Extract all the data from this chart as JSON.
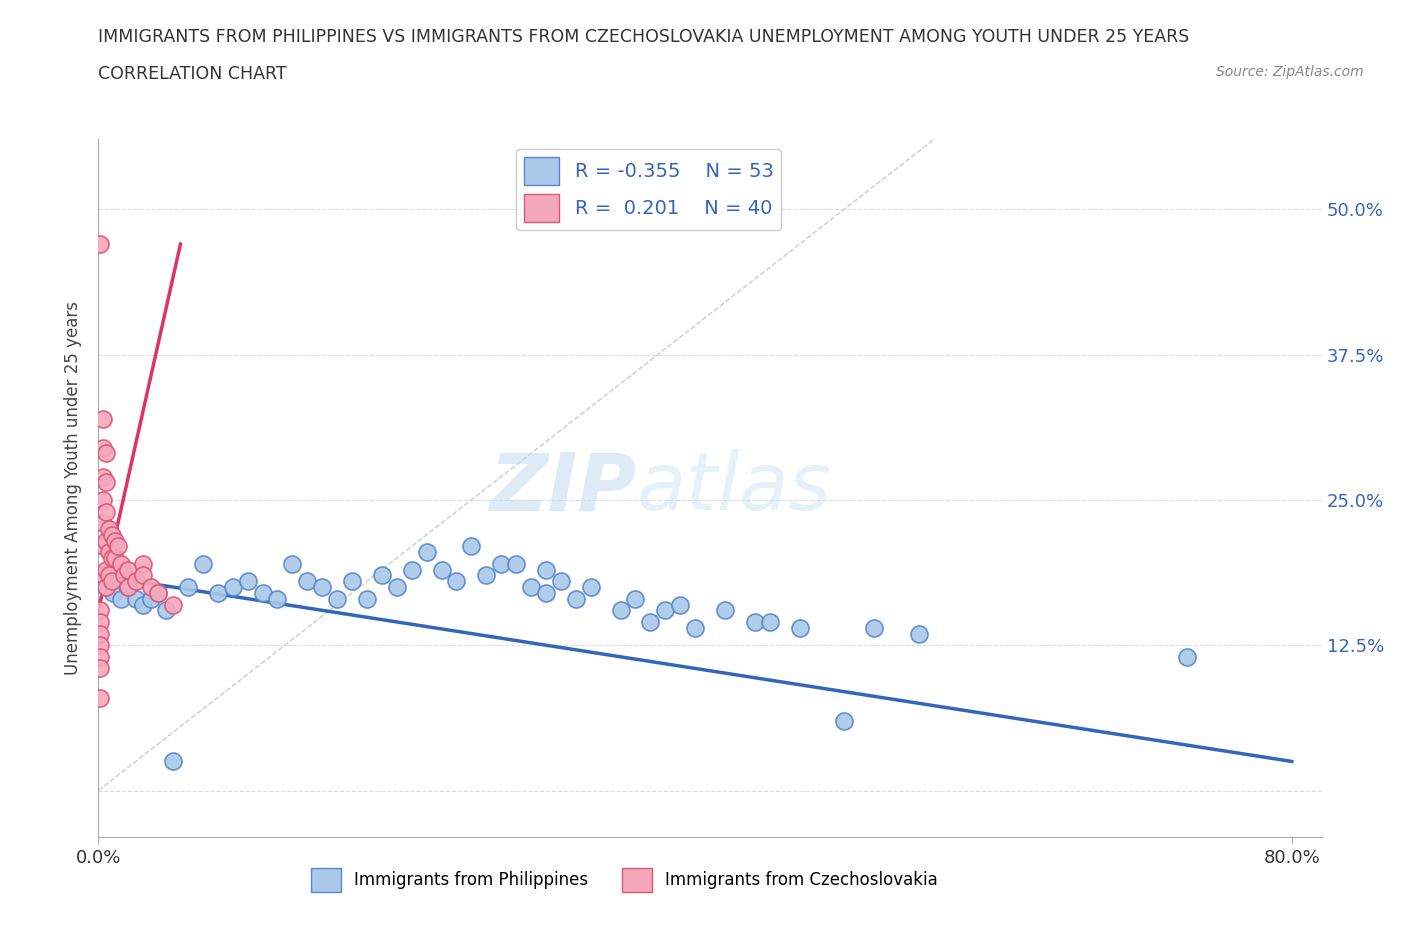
{
  "title_line1": "IMMIGRANTS FROM PHILIPPINES VS IMMIGRANTS FROM CZECHOSLOVAKIA UNEMPLOYMENT AMONG YOUTH UNDER 25 YEARS",
  "title_line2": "CORRELATION CHART",
  "source": "Source: ZipAtlas.com",
  "ylabel": "Unemployment Among Youth under 25 years",
  "xlim": [
    0.0,
    0.82
  ],
  "ylim": [
    -0.04,
    0.56
  ],
  "yticks": [
    0.0,
    0.125,
    0.25,
    0.375,
    0.5
  ],
  "ytick_labels": [
    "",
    "12.5%",
    "25.0%",
    "37.5%",
    "50.0%"
  ],
  "xtick_positions": [
    0.0,
    0.8
  ],
  "xtick_labels": [
    "0.0%",
    "80.0%"
  ],
  "philippines_color": "#aac8e8",
  "czechoslovakia_color": "#f5a8bc",
  "philippines_edge": "#5588cc",
  "czechoslovakia_edge": "#dd5577",
  "trend_philippines_color": "#3366bb",
  "trend_czechoslovakia_color": "#dd3366",
  "R_philippines": -0.355,
  "N_philippines": 53,
  "R_czechoslovakia": 0.201,
  "N_czechoslovakia": 40,
  "watermark_zip": "ZIP",
  "watermark_atlas": "atlas",
  "philippines_x": [
    0.005,
    0.01,
    0.015,
    0.02,
    0.025,
    0.03,
    0.035,
    0.04,
    0.045,
    0.05,
    0.06,
    0.07,
    0.08,
    0.09,
    0.1,
    0.11,
    0.12,
    0.13,
    0.14,
    0.15,
    0.16,
    0.17,
    0.18,
    0.19,
    0.2,
    0.21,
    0.22,
    0.23,
    0.24,
    0.25,
    0.26,
    0.27,
    0.28,
    0.29,
    0.3,
    0.31,
    0.32,
    0.33,
    0.35,
    0.36,
    0.37,
    0.38,
    0.39,
    0.4,
    0.42,
    0.44,
    0.45,
    0.47,
    0.5,
    0.52,
    0.55,
    0.73,
    0.3
  ],
  "philippines_y": [
    0.175,
    0.17,
    0.165,
    0.175,
    0.165,
    0.16,
    0.165,
    0.17,
    0.155,
    0.025,
    0.175,
    0.195,
    0.17,
    0.175,
    0.18,
    0.17,
    0.165,
    0.195,
    0.18,
    0.175,
    0.165,
    0.18,
    0.165,
    0.185,
    0.175,
    0.19,
    0.205,
    0.19,
    0.18,
    0.21,
    0.185,
    0.195,
    0.195,
    0.175,
    0.19,
    0.18,
    0.165,
    0.175,
    0.155,
    0.165,
    0.145,
    0.155,
    0.16,
    0.14,
    0.155,
    0.145,
    0.145,
    0.14,
    0.06,
    0.14,
    0.135,
    0.115,
    0.17
  ],
  "czechoslovakia_x": [
    0.001,
    0.001,
    0.001,
    0.001,
    0.001,
    0.001,
    0.001,
    0.001,
    0.003,
    0.003,
    0.003,
    0.003,
    0.003,
    0.003,
    0.003,
    0.005,
    0.005,
    0.005,
    0.005,
    0.005,
    0.005,
    0.007,
    0.007,
    0.007,
    0.009,
    0.009,
    0.009,
    0.011,
    0.011,
    0.013,
    0.015,
    0.017,
    0.02,
    0.02,
    0.025,
    0.03,
    0.03,
    0.035,
    0.04,
    0.05
  ],
  "czechoslovakia_y": [
    0.47,
    0.155,
    0.145,
    0.135,
    0.125,
    0.115,
    0.105,
    0.08,
    0.32,
    0.295,
    0.27,
    0.25,
    0.23,
    0.21,
    0.185,
    0.29,
    0.265,
    0.24,
    0.215,
    0.19,
    0.175,
    0.225,
    0.205,
    0.185,
    0.22,
    0.2,
    0.18,
    0.215,
    0.2,
    0.21,
    0.195,
    0.185,
    0.19,
    0.175,
    0.18,
    0.195,
    0.185,
    0.175,
    0.17,
    0.16
  ],
  "phil_trend_x": [
    0.0,
    0.8
  ],
  "phil_trend_y": [
    0.185,
    0.025
  ],
  "czech_trend_x": [
    0.0,
    0.055
  ],
  "czech_trend_y": [
    0.155,
    0.47
  ]
}
